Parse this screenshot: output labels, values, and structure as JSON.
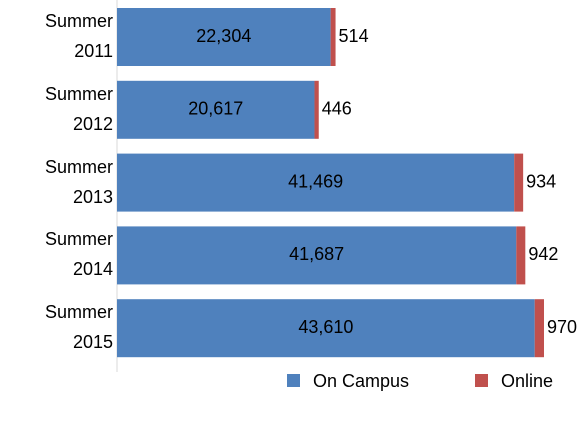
{
  "chart_data": {
    "type": "stacked-bar-horizontal",
    "categories": [
      "Summer 2011",
      "Summer 2012",
      "Summer 2013",
      "Summer 2014",
      "Summer 2015"
    ],
    "series": [
      {
        "name": "On Campus",
        "color": "#4f81bd",
        "values": [
          22304,
          20617,
          41469,
          41687,
          43610
        ],
        "value_labels": [
          "22,304",
          "20,617",
          "41,469",
          "41,687",
          "43,610"
        ]
      },
      {
        "name": "Online",
        "color": "#c0504d",
        "values": [
          514,
          446,
          934,
          942,
          970
        ]
      }
    ],
    "legend": "bottom"
  }
}
